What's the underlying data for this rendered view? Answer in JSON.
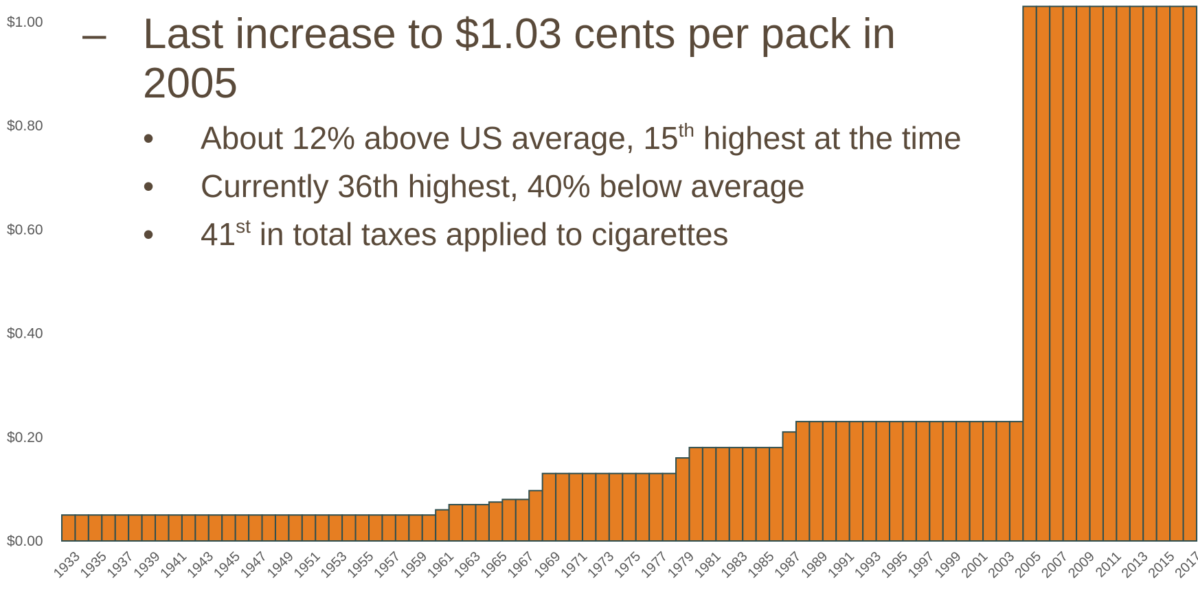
{
  "slide": {
    "dash": "–",
    "headline": "Last increase to $1.03 cents per pack in 2005",
    "bullets": [
      {
        "marker": "•",
        "pre": "About 12% above US average, 15",
        "sup": "th",
        "post": " highest at the time"
      },
      {
        "marker": "•",
        "pre": "Currently 36th highest, 40% below average",
        "sup": "",
        "post": ""
      },
      {
        "marker": "•",
        "pre": "41",
        "sup": "st",
        "post": "  in total taxes applied to cigarettes"
      }
    ]
  },
  "chart_data": {
    "type": "bar",
    "ylim": [
      0,
      1.0
    ],
    "yticks": [
      "$0.00",
      "$0.20",
      "$0.40",
      "$0.60",
      "$0.80",
      "$1.00"
    ],
    "ytick_values": [
      0,
      0.2,
      0.4,
      0.6,
      0.8,
      1.0
    ],
    "colors": {
      "bar_fill": "#e67e22",
      "bar_edge": "#2f4f4f"
    },
    "categories": [
      "1933",
      "1934",
      "1935",
      "1936",
      "1937",
      "1938",
      "1939",
      "1940",
      "1941",
      "1942",
      "1943",
      "1944",
      "1945",
      "1946",
      "1947",
      "1948",
      "1949",
      "1950",
      "1951",
      "1952",
      "1953",
      "1954",
      "1955",
      "1956",
      "1957",
      "1958",
      "1959",
      "1960",
      "1961",
      "1962",
      "1963",
      "1964",
      "1965",
      "1966",
      "1967",
      "1968",
      "1969",
      "1970",
      "1971",
      "1972",
      "1973",
      "1974",
      "1975",
      "1976",
      "1977",
      "1978",
      "1979",
      "1980",
      "1981",
      "1982",
      "1983",
      "1984",
      "1985",
      "1986",
      "1987",
      "1988",
      "1989",
      "1990",
      "1991",
      "1992",
      "1993",
      "1994",
      "1995",
      "1996",
      "1997",
      "1998",
      "1999",
      "2000",
      "2001",
      "2002",
      "2003",
      "2004",
      "2005",
      "2006",
      "2007",
      "2008",
      "2009",
      "2010",
      "2011",
      "2012",
      "2013",
      "2014",
      "2015",
      "2016",
      "2017"
    ],
    "xtick_labels": [
      "1933",
      "1935",
      "1937",
      "1939",
      "1941",
      "1943",
      "1945",
      "1947",
      "1949",
      "1951",
      "1953",
      "1955",
      "1957",
      "1959",
      "1961",
      "1963",
      "1965",
      "1967",
      "1969",
      "1971",
      "1973",
      "1975",
      "1977",
      "1979",
      "1981",
      "1983",
      "1985",
      "1987",
      "1989",
      "1991",
      "1993",
      "1995",
      "1997",
      "1999",
      "2001",
      "2003",
      "2005",
      "2007",
      "2009",
      "2011",
      "2013",
      "2015",
      "2017"
    ],
    "values": [
      0.05,
      0.05,
      0.05,
      0.05,
      0.05,
      0.05,
      0.05,
      0.05,
      0.05,
      0.05,
      0.05,
      0.05,
      0.05,
      0.05,
      0.05,
      0.05,
      0.05,
      0.05,
      0.05,
      0.05,
      0.05,
      0.05,
      0.05,
      0.05,
      0.05,
      0.05,
      0.05,
      0.05,
      0.06,
      0.07,
      0.07,
      0.07,
      0.075,
      0.08,
      0.08,
      0.097,
      0.13,
      0.13,
      0.13,
      0.13,
      0.13,
      0.13,
      0.13,
      0.13,
      0.13,
      0.13,
      0.16,
      0.18,
      0.18,
      0.18,
      0.18,
      0.18,
      0.18,
      0.18,
      0.21,
      0.23,
      0.23,
      0.23,
      0.23,
      0.23,
      0.23,
      0.23,
      0.23,
      0.23,
      0.23,
      0.23,
      0.23,
      0.23,
      0.23,
      0.23,
      0.23,
      0.23,
      1.03,
      1.03,
      1.03,
      1.03,
      1.03,
      1.03,
      1.03,
      1.03,
      1.03,
      1.03,
      1.03,
      1.03,
      1.03
    ]
  }
}
